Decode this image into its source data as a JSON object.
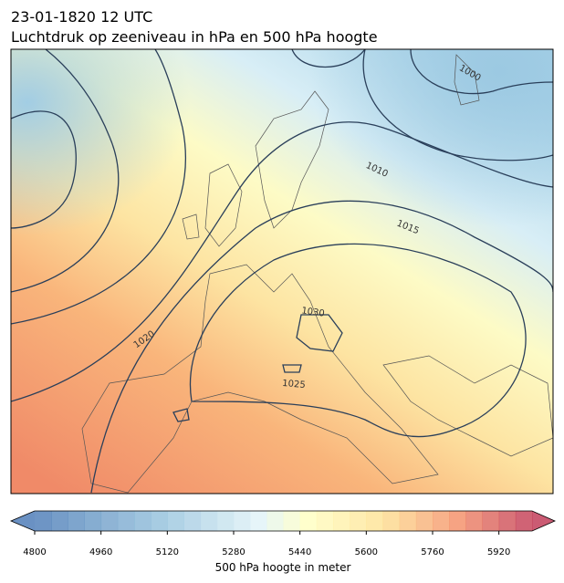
{
  "header": {
    "title": [
      "23-01-1820 12 UTC",
      "Luchtdruk op zeeniveau in hPa en 500 hPa hoogte"
    ]
  },
  "map": {
    "contour_labels": [
      1000,
      1010,
      1015,
      1020,
      1030,
      1025
    ]
  },
  "colorbar": {
    "range": [
      4800,
      6000
    ],
    "ticks": [
      4800,
      4960,
      5120,
      5280,
      5440,
      5600,
      5760,
      5920
    ],
    "label": "500 hPa hoogte in meter"
  }
}
